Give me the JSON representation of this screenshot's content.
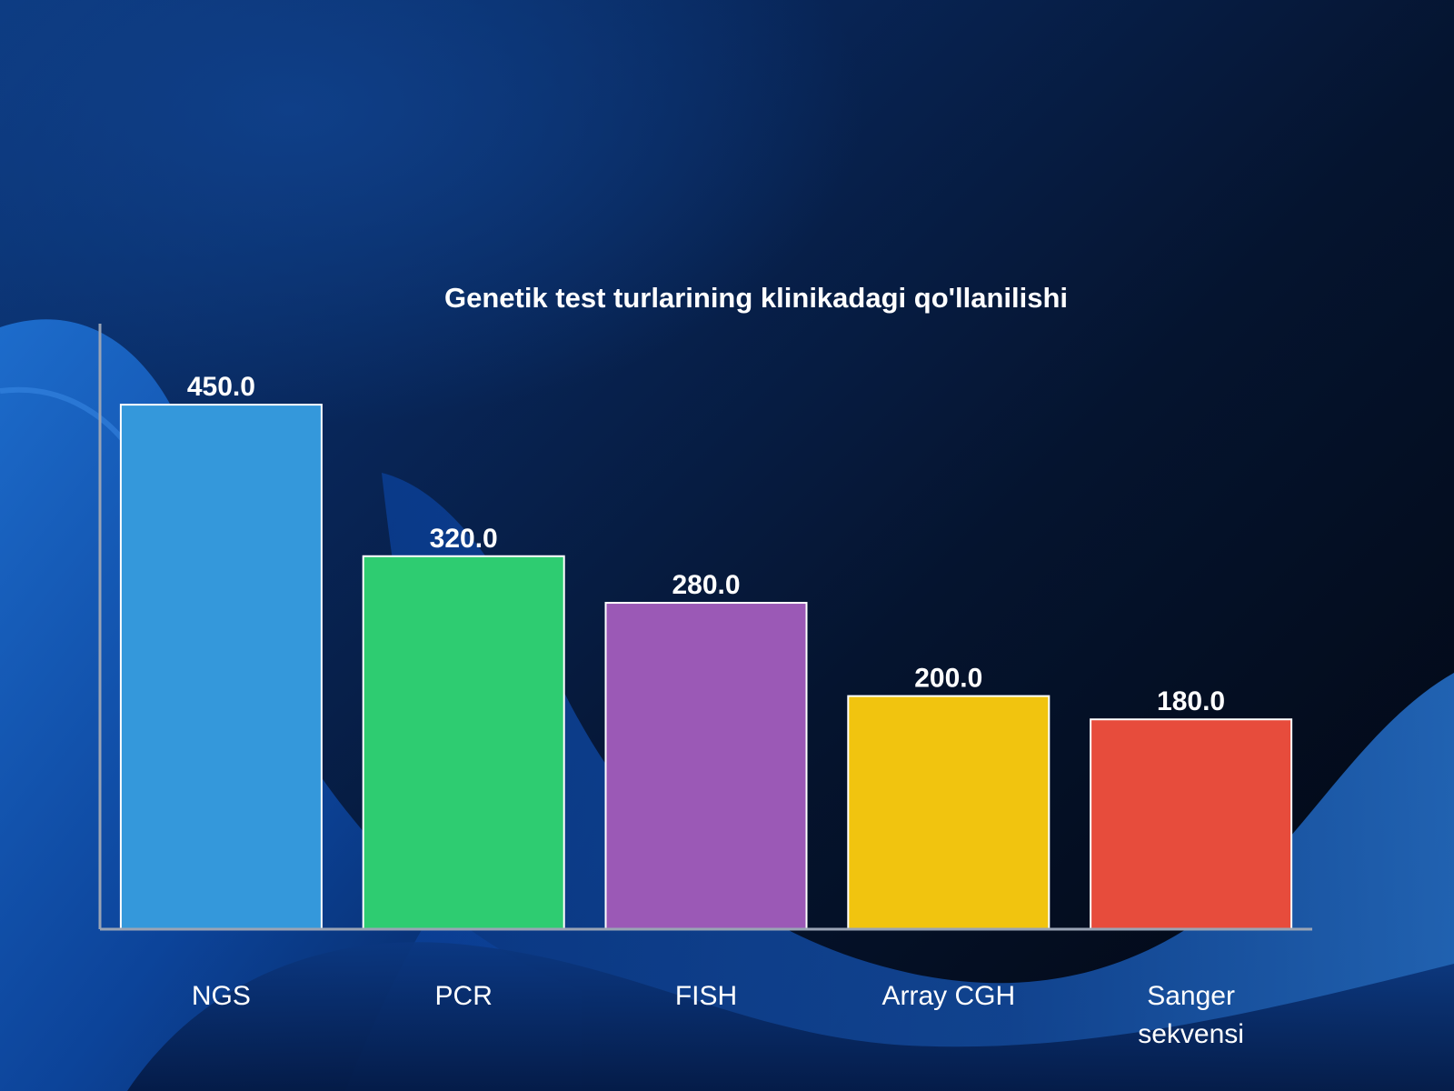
{
  "chart_data": {
    "type": "bar",
    "title": "Genetik test turlarining klinikadagi qo'llanilishi",
    "categories": [
      "NGS",
      "PCR",
      "FISH",
      "Array CGH",
      "Sanger sekvensi"
    ],
    "values": [
      450.0,
      320.0,
      280.0,
      200.0,
      180.0
    ],
    "value_labels": [
      "450.0",
      "320.0",
      "280.0",
      "200.0",
      "180.0"
    ],
    "colors": [
      "#3498db",
      "#2ecc71",
      "#9b59b6",
      "#f1c40f",
      "#e74c3c"
    ],
    "bar_edge_color": "#ffffff",
    "axis_color": "#9aa4b5",
    "ylim": [
      0,
      500
    ],
    "grid": false,
    "legend": "none"
  }
}
